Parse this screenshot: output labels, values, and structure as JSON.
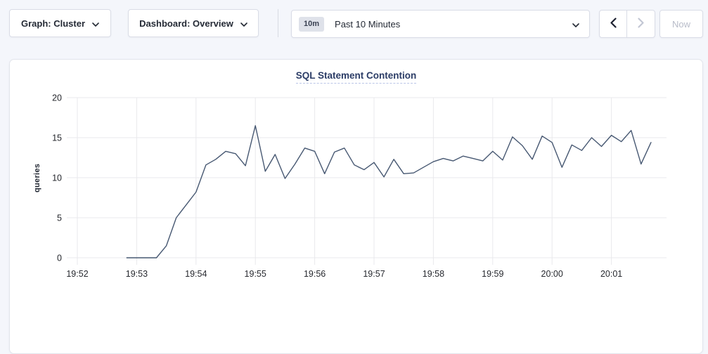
{
  "toolbar": {
    "graph_dropdown": {
      "label": "Graph: Cluster",
      "icon": "chevron-down"
    },
    "dashboard_dropdown": {
      "label": "Dashboard: Overview",
      "icon": "chevron-down"
    },
    "time_range": {
      "badge": "10m",
      "label": "Past 10 Minutes",
      "icon": "chevron-down"
    },
    "prev_button_icon": "chevron-left",
    "next_button_icon": "chevron-right",
    "now_label": "Now"
  },
  "chart_data": {
    "type": "line",
    "title": "SQL Statement Contention",
    "ylabel": "queries",
    "ylim": [
      0,
      20
    ],
    "y_ticks": [
      0,
      5,
      10,
      15,
      20
    ],
    "x_ticks": [
      "19:52",
      "19:53",
      "19:54",
      "19:55",
      "19:56",
      "19:57",
      "19:58",
      "19:59",
      "20:00",
      "20:01"
    ],
    "grid": true,
    "legend": "none",
    "line_color": "#475872",
    "grid_color": "#e9e9ec",
    "series": [
      {
        "name": "SQL Statement Contention",
        "points": [
          [
            "19:52:50",
            0
          ],
          [
            "19:53:00",
            0
          ],
          [
            "19:53:10",
            0
          ],
          [
            "19:53:20",
            0
          ],
          [
            "19:53:30",
            1.5
          ],
          [
            "19:53:40",
            5.0
          ],
          [
            "19:53:50",
            6.6
          ],
          [
            "19:54:00",
            8.2
          ],
          [
            "19:54:10",
            11.6
          ],
          [
            "19:54:20",
            12.3
          ],
          [
            "19:54:30",
            13.3
          ],
          [
            "19:54:40",
            13.0
          ],
          [
            "19:54:50",
            11.5
          ],
          [
            "19:55:00",
            16.5
          ],
          [
            "19:55:10",
            10.8
          ],
          [
            "19:55:20",
            12.9
          ],
          [
            "19:55:30",
            9.9
          ],
          [
            "19:55:40",
            11.7
          ],
          [
            "19:55:50",
            13.7
          ],
          [
            "19:56:00",
            13.3
          ],
          [
            "19:56:10",
            10.5
          ],
          [
            "19:56:20",
            13.2
          ],
          [
            "19:56:30",
            13.7
          ],
          [
            "19:56:40",
            11.6
          ],
          [
            "19:56:50",
            11.0
          ],
          [
            "19:57:00",
            11.9
          ],
          [
            "19:57:10",
            10.1
          ],
          [
            "19:57:20",
            12.3
          ],
          [
            "19:57:30",
            10.5
          ],
          [
            "19:57:40",
            10.6
          ],
          [
            "19:57:50",
            11.3
          ],
          [
            "19:58:00",
            12.0
          ],
          [
            "19:58:10",
            12.4
          ],
          [
            "19:58:20",
            12.1
          ],
          [
            "19:58:30",
            12.7
          ],
          [
            "19:58:40",
            12.4
          ],
          [
            "19:58:50",
            12.1
          ],
          [
            "19:59:00",
            13.3
          ],
          [
            "19:59:10",
            12.2
          ],
          [
            "19:59:20",
            15.1
          ],
          [
            "19:59:30",
            14.0
          ],
          [
            "19:59:40",
            12.3
          ],
          [
            "19:59:50",
            15.2
          ],
          [
            "20:00:00",
            14.4
          ],
          [
            "20:00:10",
            11.3
          ],
          [
            "20:00:20",
            14.1
          ],
          [
            "20:00:30",
            13.4
          ],
          [
            "20:00:40",
            15.0
          ],
          [
            "20:00:50",
            13.9
          ],
          [
            "20:01:00",
            15.3
          ],
          [
            "20:01:10",
            14.5
          ],
          [
            "20:01:20",
            15.9
          ],
          [
            "20:01:30",
            11.7
          ],
          [
            "20:01:40",
            14.4
          ]
        ]
      }
    ]
  }
}
